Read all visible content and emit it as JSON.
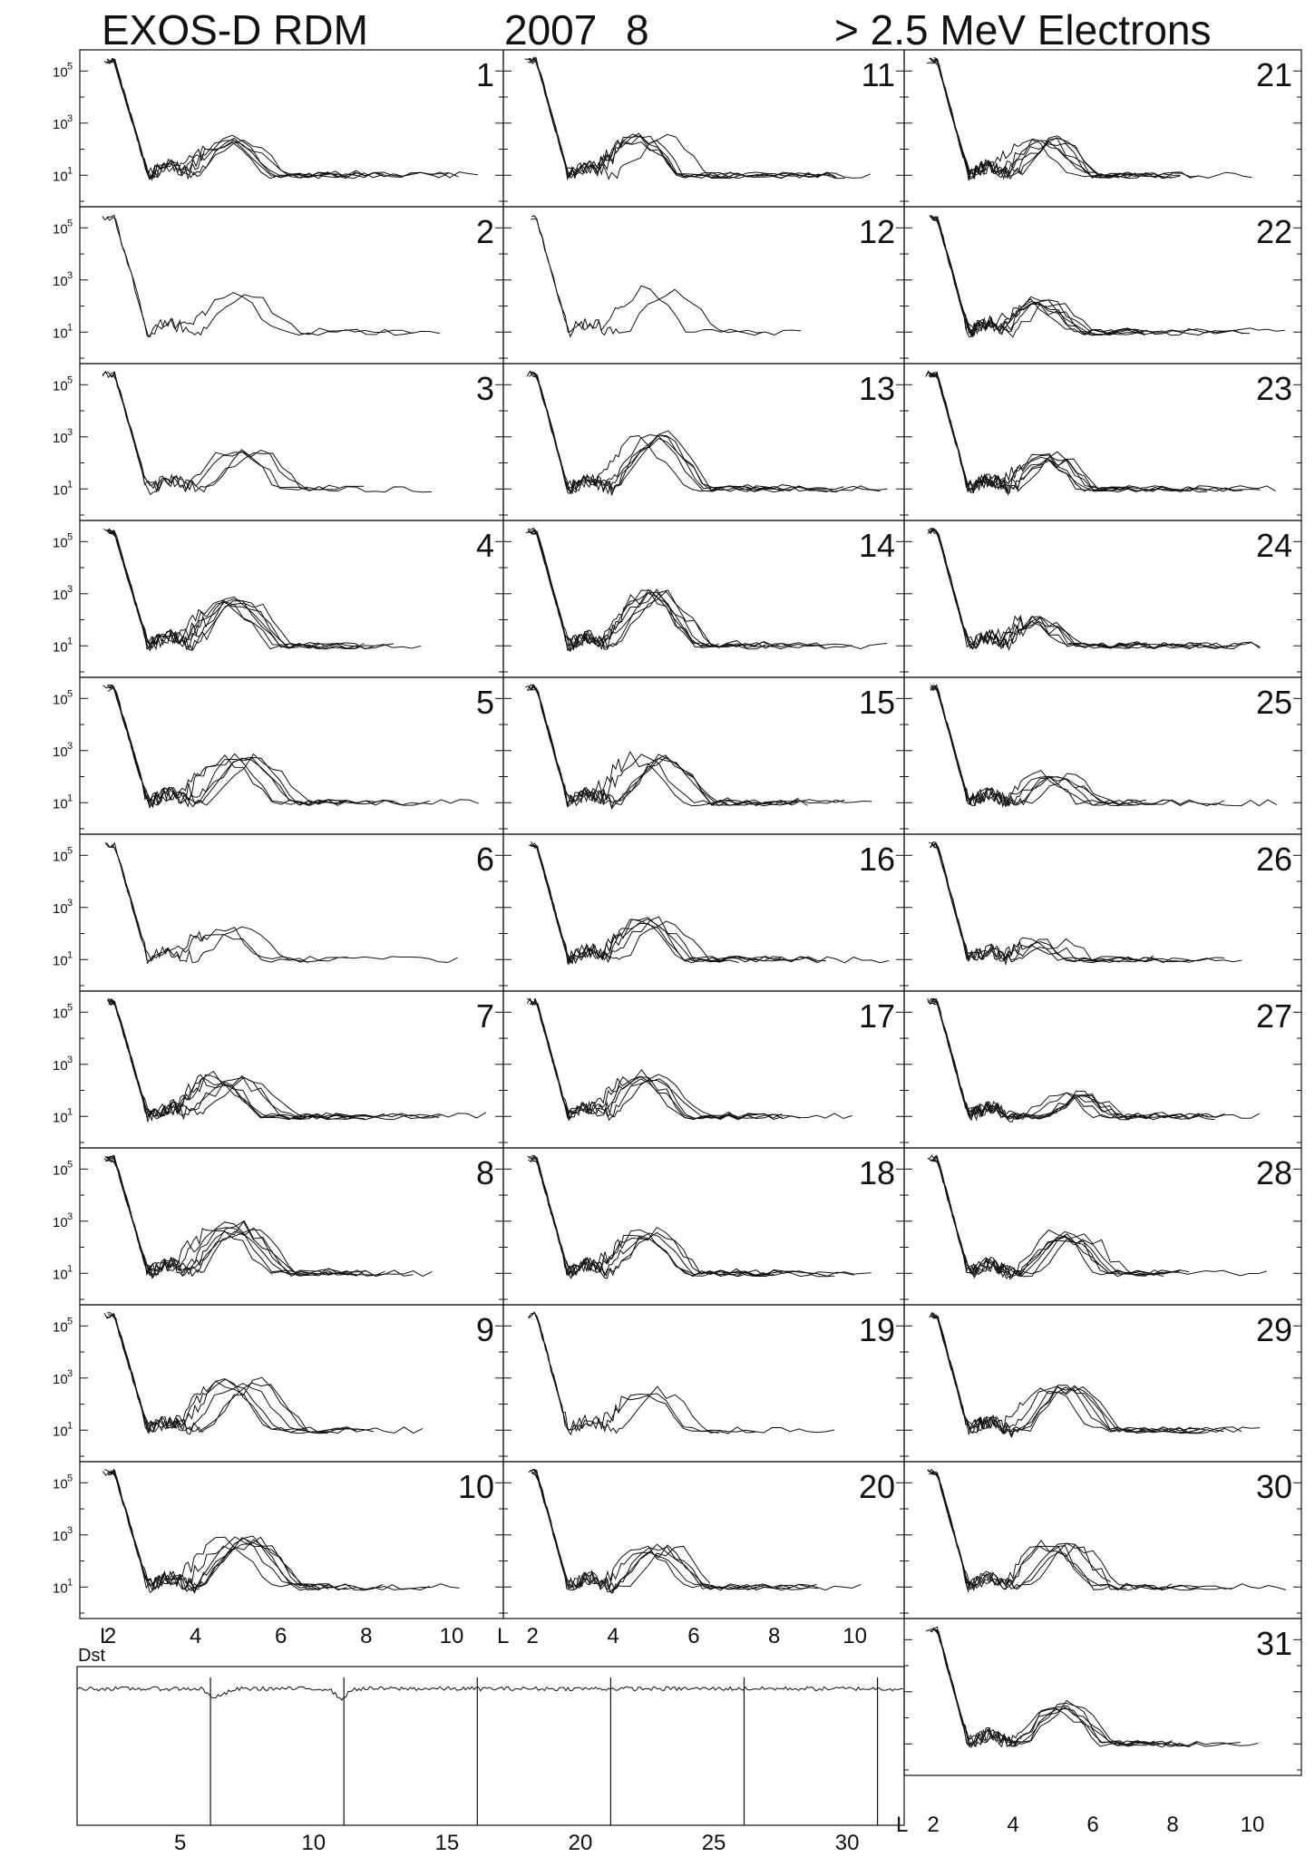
{
  "header": {
    "instrument": "EXOS-D RDM",
    "year": "2007",
    "month": "8",
    "energy": "> 2.5  MeV Electrons"
  },
  "colors": {
    "ink": "#111111",
    "background": "#ffffff"
  },
  "axis_labels": {
    "l_label": "L",
    "dst_label": "Dst",
    "y_ticks": [
      "10",
      "10",
      "10"
    ],
    "y_exponents": [
      "5",
      "3",
      "1"
    ],
    "l_ticks": [
      "2",
      "4",
      "6",
      "8",
      "10"
    ],
    "day_ticks": [
      "5",
      "10",
      "15",
      "20",
      "25",
      "30"
    ]
  },
  "chart_data": {
    "type": "line",
    "title": "EXOS-D RDM  2007  8  > 2.5 MeV Electrons",
    "panel_xlabel": "L",
    "panel_xlim": [
      1.5,
      11
    ],
    "panel_xticks": [
      2,
      4,
      6,
      8,
      10
    ],
    "panel_yscale": "log",
    "panel_ylim": [
      1,
      400000
    ],
    "panel_yticks": [
      "10^5",
      "10^3",
      "10^1"
    ],
    "grid": false,
    "panel_days": [
      1,
      2,
      3,
      4,
      5,
      6,
      7,
      8,
      9,
      10,
      11,
      12,
      13,
      14,
      15,
      16,
      17,
      18,
      19,
      20,
      21,
      22,
      23,
      24,
      25,
      26,
      27,
      28,
      29,
      30,
      31
    ],
    "panels": [
      {
        "day": 1,
        "passes": 6,
        "outer_peak_L": 5.0,
        "outer_peak_flux": 200
      },
      {
        "day": 2,
        "passes": 2,
        "outer_peak_L": 5.0,
        "outer_peak_flux": 300
      },
      {
        "day": 3,
        "passes": 4,
        "outer_peak_L": 5.0,
        "outer_peak_flux": 300
      },
      {
        "day": 4,
        "passes": 7,
        "outer_peak_L": 5.0,
        "outer_peak_flux": 500
      },
      {
        "day": 5,
        "passes": 6,
        "outer_peak_L": 5.0,
        "outer_peak_flux": 500
      },
      {
        "day": 6,
        "passes": 3,
        "outer_peak_L": 4.8,
        "outer_peak_flux": 150
      },
      {
        "day": 7,
        "passes": 7,
        "outer_peak_L": 4.8,
        "outer_peak_flux": 300
      },
      {
        "day": 8,
        "passes": 7,
        "outer_peak_L": 4.9,
        "outer_peak_flux": 600
      },
      {
        "day": 9,
        "passes": 6,
        "outer_peak_L": 5.0,
        "outer_peak_flux": 700
      },
      {
        "day": 10,
        "passes": 7,
        "outer_peak_L": 4.9,
        "outer_peak_flux": 700
      },
      {
        "day": 11,
        "passes": 6,
        "outer_peak_L": 4.9,
        "outer_peak_flux": 300
      },
      {
        "day": 12,
        "passes": 2,
        "outer_peak_L": 5.0,
        "outer_peak_flux": 400
      },
      {
        "day": 13,
        "passes": 6,
        "outer_peak_L": 5.0,
        "outer_peak_flux": 900
      },
      {
        "day": 14,
        "passes": 7,
        "outer_peak_L": 5.0,
        "outer_peak_flux": 900
      },
      {
        "day": 15,
        "passes": 6,
        "outer_peak_L": 4.9,
        "outer_peak_flux": 500
      },
      {
        "day": 16,
        "passes": 6,
        "outer_peak_L": 4.9,
        "outer_peak_flux": 300
      },
      {
        "day": 17,
        "passes": 6,
        "outer_peak_L": 4.9,
        "outer_peak_flux": 350
      },
      {
        "day": 18,
        "passes": 6,
        "outer_peak_L": 4.9,
        "outer_peak_flux": 350
      },
      {
        "day": 19,
        "passes": 3,
        "outer_peak_L": 5.0,
        "outer_peak_flux": 300
      },
      {
        "day": 20,
        "passes": 6,
        "outer_peak_L": 5.0,
        "outer_peak_flux": 300
      },
      {
        "day": 21,
        "passes": 7,
        "outer_peak_L": 4.8,
        "outer_peak_flux": 200
      },
      {
        "day": 22,
        "passes": 7,
        "outer_peak_L": 4.8,
        "outer_peak_flux": 150
      },
      {
        "day": 23,
        "passes": 7,
        "outer_peak_L": 4.8,
        "outer_peak_flux": 150
      },
      {
        "day": 24,
        "passes": 6,
        "outer_peak_L": 4.7,
        "outer_peak_flux": 100
      },
      {
        "day": 25,
        "passes": 6,
        "outer_peak_L": 5.0,
        "outer_peak_flux": 100
      },
      {
        "day": 26,
        "passes": 5,
        "outer_peak_L": 4.8,
        "outer_peak_flux": 50
      },
      {
        "day": 27,
        "passes": 7,
        "outer_peak_L": 5.5,
        "outer_peak_flux": 60
      },
      {
        "day": 28,
        "passes": 7,
        "outer_peak_L": 5.3,
        "outer_peak_flux": 300
      },
      {
        "day": 29,
        "passes": 6,
        "outer_peak_L": 5.2,
        "outer_peak_flux": 500
      },
      {
        "day": 30,
        "passes": 6,
        "outer_peak_L": 5.2,
        "outer_peak_flux": 400
      },
      {
        "day": 31,
        "passes": 6,
        "outer_peak_L": 5.2,
        "outer_peak_flux": 300
      }
    ],
    "dst": {
      "label": "Dst",
      "xlabel": "",
      "xlim": [
        1,
        32
      ],
      "xticks": [
        5,
        10,
        15,
        20,
        25,
        30
      ],
      "ylim": [
        -100,
        20
      ],
      "day_dividers": [
        6,
        11,
        16,
        21,
        26,
        31
      ],
      "note": "trace hovers just below zero with small dips near days 6 and 11"
    }
  }
}
